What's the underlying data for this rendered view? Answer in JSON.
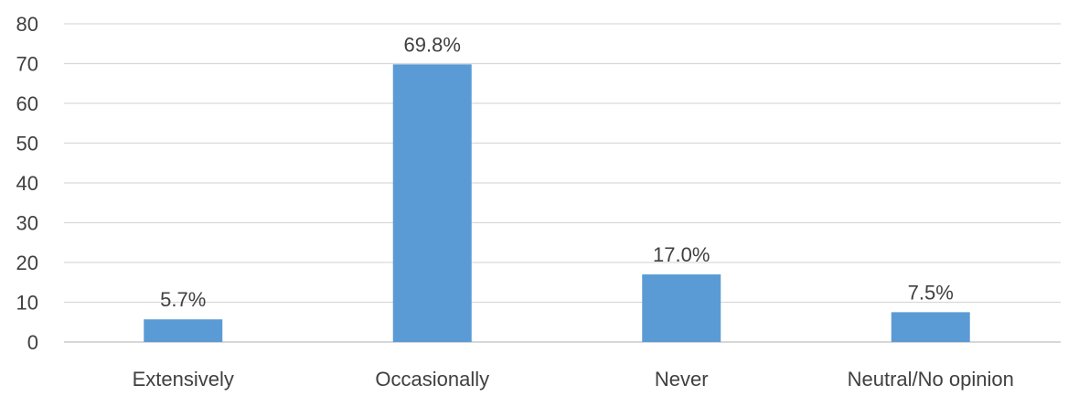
{
  "chart_data": {
    "type": "bar",
    "title": "",
    "xlabel": "",
    "ylabel": "",
    "categories": [
      "Extensively",
      "Occasionally",
      "Never",
      "Neutral/No opinion"
    ],
    "values": [
      5.7,
      69.8,
      17.0,
      7.5
    ],
    "data_labels": [
      "5.7%",
      "69.8%",
      "17.0%",
      "7.5%"
    ],
    "ylim": [
      0,
      80
    ],
    "yticks": [
      0,
      10,
      20,
      30,
      40,
      50,
      60,
      70,
      80
    ],
    "grid": true,
    "legend": "none",
    "colors": {
      "bar": "#5b9bd5",
      "gridline": "#d9d9d9",
      "axis": "#bfbfbf",
      "text": "#404040"
    }
  }
}
